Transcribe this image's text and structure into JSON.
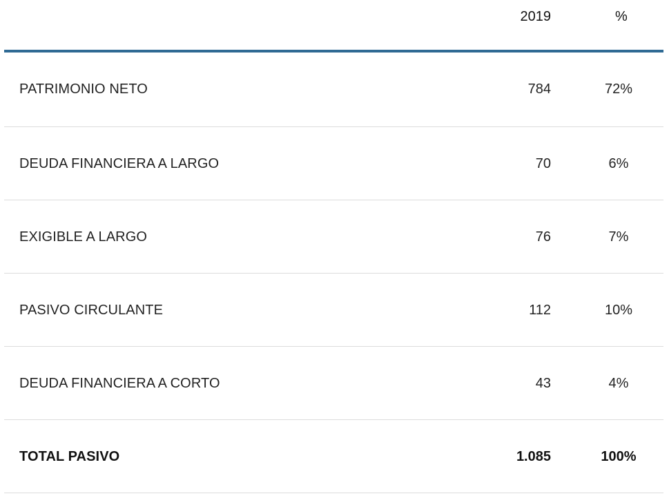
{
  "header": {
    "year": "2019",
    "pct": "%"
  },
  "rows": [
    {
      "label": "PATRIMONIO NETO",
      "value": "784",
      "pct": "72%"
    },
    {
      "label": "DEUDA FINANCIERA A LARGO",
      "value": "70",
      "pct": "6%"
    },
    {
      "label": "EXIGIBLE A LARGO",
      "value": "76",
      "pct": "7%"
    },
    {
      "label": "PASIVO CIRCULANTE",
      "value": "112",
      "pct": "10%"
    },
    {
      "label": "DEUDA FINANCIERA A CORTO",
      "value": "43",
      "pct": "4%"
    }
  ],
  "total": {
    "label": "TOTAL PASIVO",
    "value": "1.085",
    "pct": "100%"
  },
  "colors": {
    "header_rule": "#2f6a94",
    "row_divider": "#dcdcdc"
  }
}
